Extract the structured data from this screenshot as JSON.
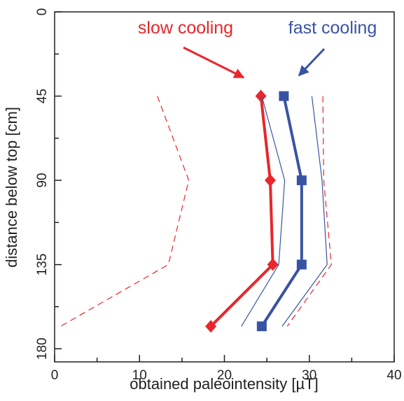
{
  "chart_data": {
    "type": "line",
    "xlabel": "obtained paleointensity [µT]",
    "ylabel": "distance below top [cm]",
    "depths": [
      45,
      90,
      135,
      168
    ],
    "series": [
      {
        "name": "slow cooling",
        "color": "#e8262b",
        "values": [
          24.3,
          25.4,
          25.7,
          18.4
        ],
        "width": 4,
        "marker": "diamond"
      },
      {
        "name": "fast cooling",
        "color": "#3953a4",
        "values": [
          27.0,
          29.1,
          29.1,
          24.4
        ],
        "width": 4,
        "marker": "square"
      },
      {
        "color": "#3953a4",
        "values": [
          24.4,
          27.1,
          26.4,
          22.0
        ],
        "width": 1.2
      },
      {
        "color": "#3953a4",
        "values": [
          30.3,
          31.5,
          32.1,
          26.8
        ],
        "width": 1.2
      },
      {
        "color": "#e8262b",
        "values": [
          12.1,
          15.8,
          13.4,
          0.7
        ],
        "width": 1.2,
        "dashed": true
      },
      {
        "color": "#e8262b",
        "values": [
          31.6,
          31.7,
          32.6,
          27.4
        ],
        "width": 1.2,
        "dashed": true
      }
    ],
    "xlim": [
      0,
      40
    ],
    "xticks": [
      0,
      10,
      20,
      30,
      40
    ],
    "xminorticks": [
      5,
      15,
      25,
      35
    ],
    "ylim": [
      0,
      187
    ],
    "yticks": [
      0,
      45,
      90,
      135,
      180
    ],
    "yminorticks": [
      22.5,
      67.5,
      112.5,
      157.5
    ],
    "y_inverted": true
  }
}
